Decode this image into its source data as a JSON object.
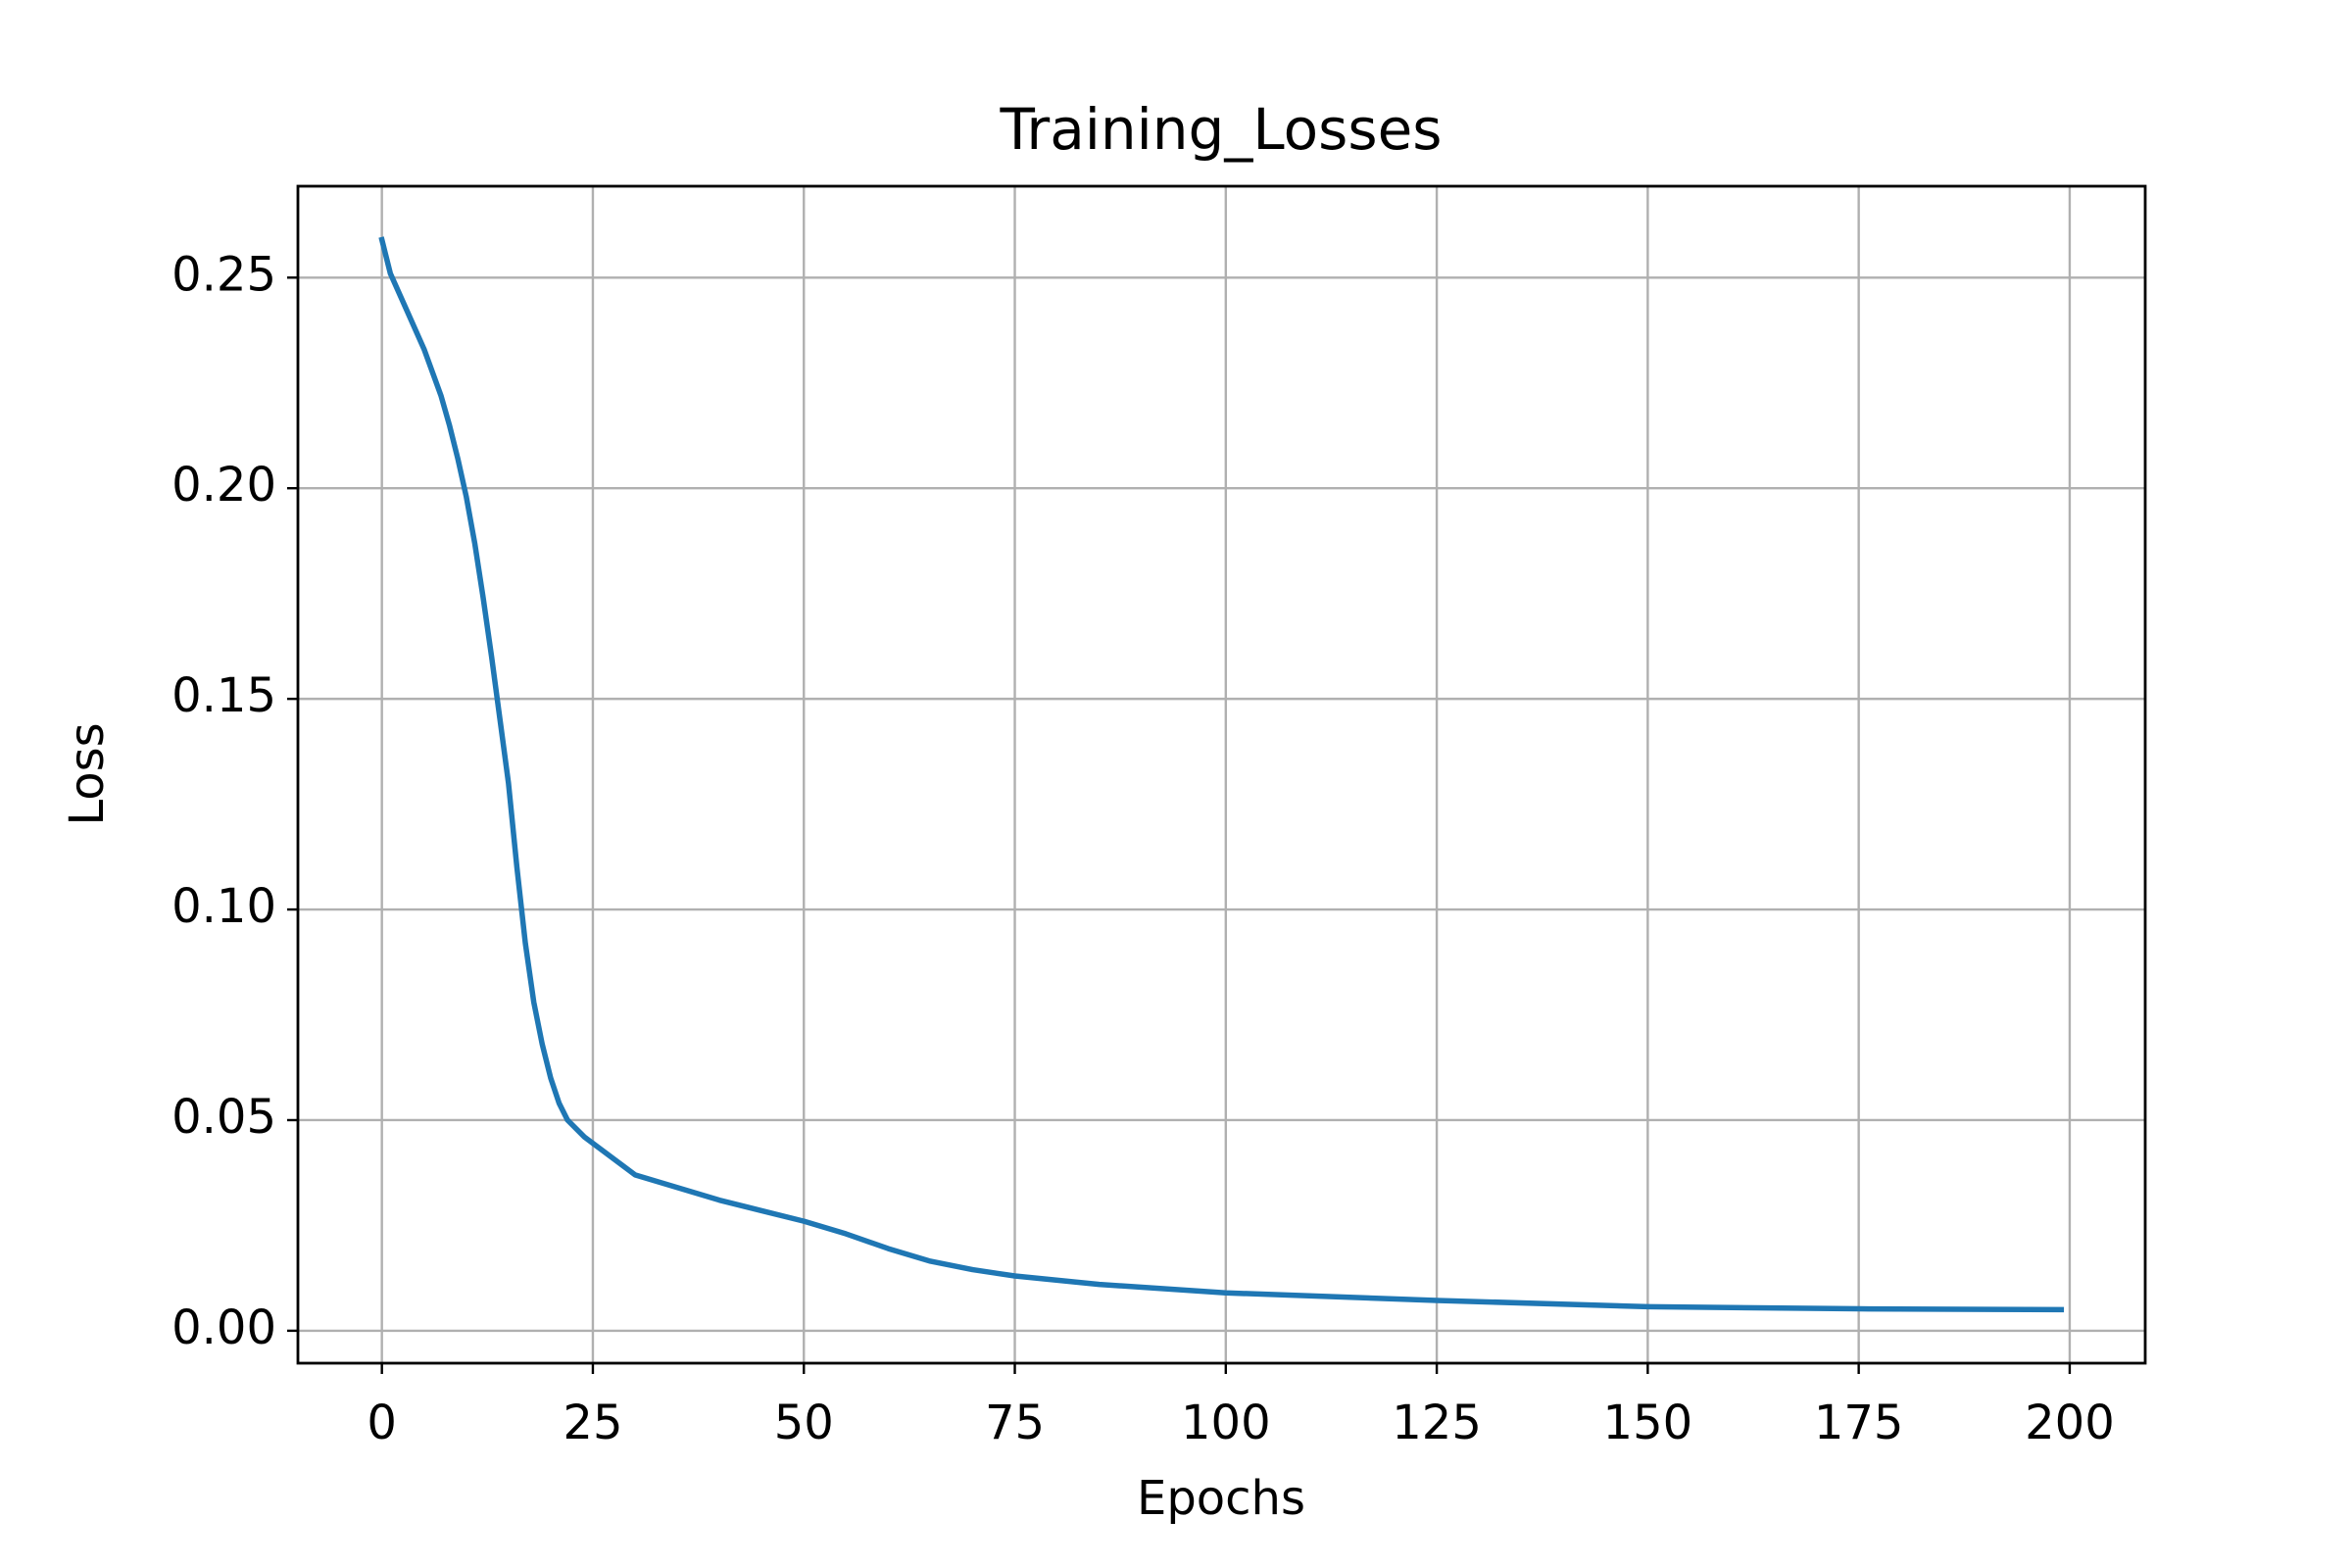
{
  "chart_data": {
    "type": "line",
    "title": "Training_Losses",
    "x_label": "Epochs",
    "y_label": "Loss",
    "x": [
      0,
      1,
      3,
      5,
      7,
      8,
      9,
      10,
      11,
      12,
      13,
      14,
      15,
      16,
      17,
      18,
      19,
      20,
      21,
      22,
      24,
      26,
      28,
      30,
      35,
      40,
      45,
      50,
      55,
      60,
      65,
      70,
      75,
      85,
      100,
      125,
      150,
      175,
      199
    ],
    "series": [
      {
        "name": "Training_Losses",
        "color": "#1f77b4",
        "values": [
          0.259,
          0.251,
          0.242,
          0.233,
          0.222,
          0.215,
          0.207,
          0.198,
          0.187,
          0.174,
          0.16,
          0.145,
          0.13,
          0.11,
          0.092,
          0.078,
          0.068,
          0.06,
          0.054,
          0.05,
          0.046,
          0.043,
          0.04,
          0.037,
          0.034,
          0.031,
          0.0285,
          0.026,
          0.023,
          0.0195,
          0.0165,
          0.0145,
          0.013,
          0.011,
          0.009,
          0.0072,
          0.0057,
          0.0052,
          0.005
        ]
      }
    ],
    "xlim": [
      -9.95,
      208.95
    ],
    "ylim": [
      -0.0077,
      0.2717
    ],
    "xticks": [
      0,
      25,
      50,
      75,
      100,
      125,
      150,
      175,
      200
    ],
    "yticks": [
      {
        "value": 0,
        "label": "0.00"
      },
      {
        "value": 0.05,
        "label": "0.05"
      },
      {
        "value": 0.1,
        "label": "0.10"
      },
      {
        "value": 0.15,
        "label": "0.15"
      },
      {
        "value": 0.2,
        "label": "0.20"
      },
      {
        "value": 0.25,
        "label": "0.25"
      }
    ],
    "grid": true
  }
}
